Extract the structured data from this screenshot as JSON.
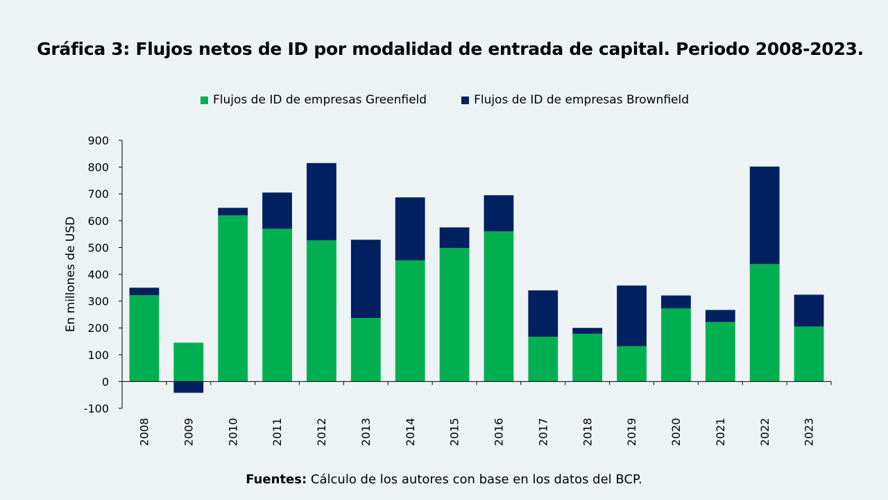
{
  "slide": {
    "source_label": "Fuentes:",
    "source_text": " Cálculo de los autores con base en los datos del BCP."
  },
  "colors": {
    "background": "#edf2f5",
    "greenfield": "#00b050",
    "brownfield": "#002060",
    "axis": "#000000"
  },
  "chart_data": {
    "type": "bar",
    "stacked": true,
    "title": "Gráfica 3: Flujos netos de ID por modalidad de entrada de capital. Periodo 2008-2023.",
    "xlabel": "",
    "ylabel": "En millones de USD",
    "ylim": [
      -100,
      900
    ],
    "yticks": [
      -100,
      0,
      100,
      200,
      300,
      400,
      500,
      600,
      700,
      800,
      900
    ],
    "grid": false,
    "legend_position": "top",
    "categories": [
      "2008",
      "2009",
      "2010",
      "2011",
      "2012",
      "2013",
      "2014",
      "2015",
      "2016",
      "2017",
      "2018",
      "2019",
      "2020",
      "2021",
      "2022",
      "2023"
    ],
    "series": [
      {
        "name": "Flujos de ID de empresas Greenfield",
        "color": "#00b050",
        "values": [
          322,
          145,
          620,
          570,
          527,
          237,
          452,
          498,
          560,
          167,
          178,
          132,
          273,
          222,
          438,
          205
        ]
      },
      {
        "name": "Flujos de ID de empresas Brownfield",
        "color": "#002060",
        "values": [
          28,
          -42,
          28,
          135,
          288,
          292,
          235,
          77,
          135,
          173,
          22,
          226,
          48,
          45,
          364,
          119
        ]
      }
    ]
  }
}
